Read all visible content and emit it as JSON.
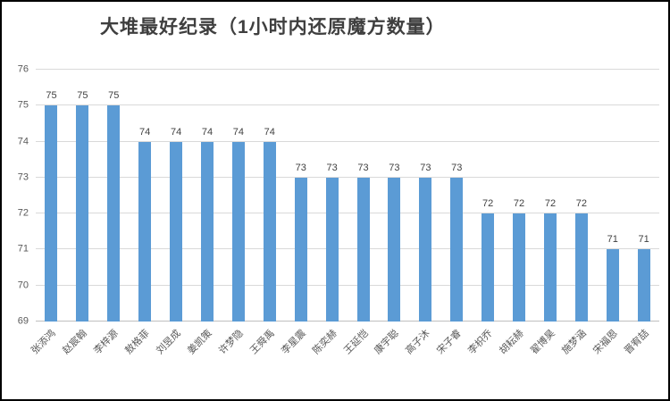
{
  "window": {
    "background": "#ffffff",
    "border_color": "#000000"
  },
  "chart_data": {
    "type": "bar",
    "title": "大堆最好纪录（1小时内还原魔方数量）",
    "categories": [
      "张添鸿",
      "赵宸翰",
      "李梓源",
      "敖格菲",
      "刘昱成",
      "姜凯策",
      "许梦隐",
      "王舜禹",
      "李星震",
      "陈奕赫",
      "王延恺",
      "康宇聪",
      "高子沐",
      "宋子睿",
      "李枳乔",
      "胡耘赫",
      "翟博昊",
      "施梦涵",
      "宋福恩",
      "晋宥喆"
    ],
    "values": [
      75,
      75,
      75,
      74,
      74,
      74,
      74,
      74,
      73,
      73,
      73,
      73,
      73,
      73,
      72,
      72,
      72,
      72,
      71,
      71
    ],
    "xlabel": "",
    "ylabel": "",
    "ylim": [
      69,
      76
    ],
    "yticks": [
      69,
      70,
      71,
      72,
      73,
      74,
      75,
      76
    ],
    "grid": true,
    "legend_position": "none",
    "data_labels": true,
    "x_label_rotation_deg": 45,
    "bar_color": "#5b9bd5",
    "gridline_color": "#d9d9d9",
    "axis_line_color": "#bfbfbf",
    "tick_label_color": "#595959",
    "value_label_color": "#404040",
    "title_color": "#3f3f3f"
  }
}
